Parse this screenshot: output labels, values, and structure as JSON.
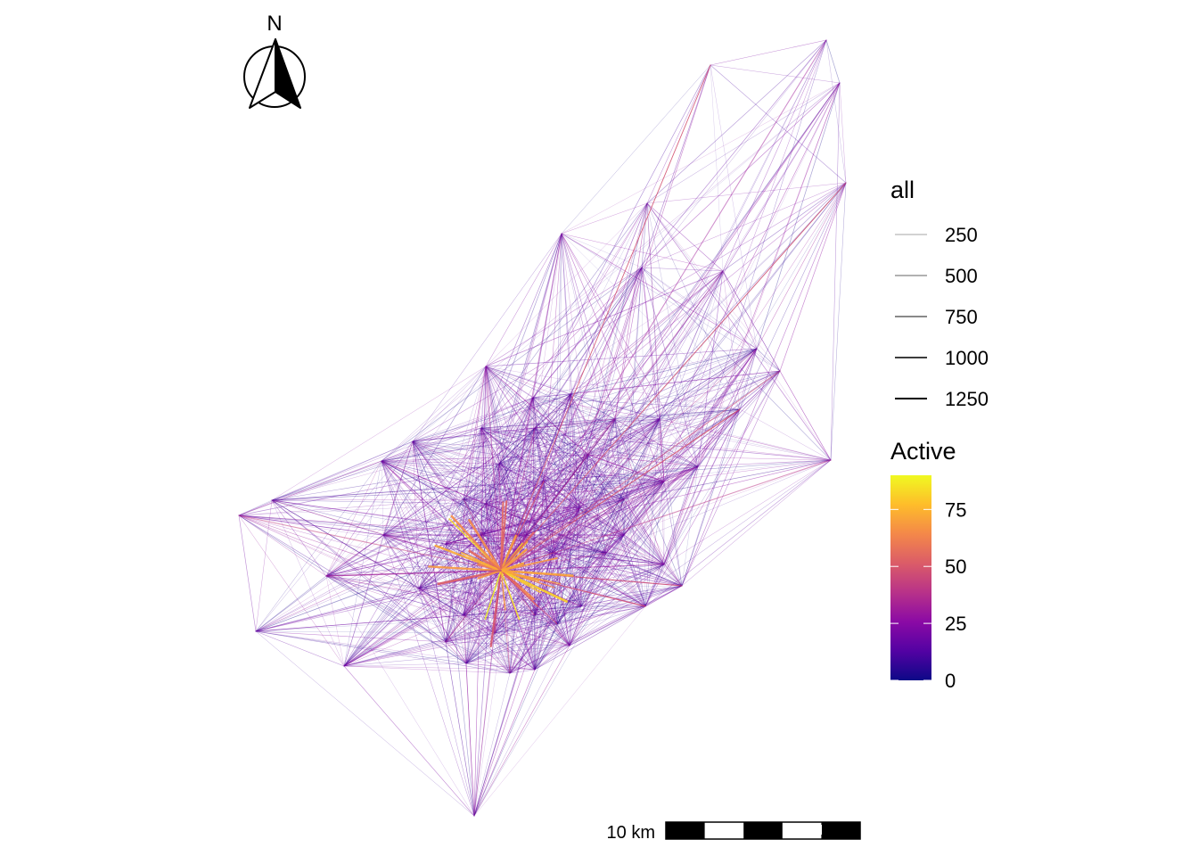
{
  "north_arrow": {
    "letter": "N"
  },
  "legend_width": {
    "title": "all",
    "entries": [
      {
        "label": "250",
        "value": 250
      },
      {
        "label": "500",
        "value": 500
      },
      {
        "label": "750",
        "value": 750
      },
      {
        "label": "1000",
        "value": 1000
      },
      {
        "label": "1250",
        "value": 1250
      }
    ]
  },
  "legend_color": {
    "title": "Active",
    "palette": "plasma",
    "range": [
      0,
      90
    ],
    "ticks": [
      {
        "label": "75",
        "value": 75
      },
      {
        "label": "50",
        "value": 50
      },
      {
        "label": "25",
        "value": 25
      },
      {
        "label": "0",
        "value": 0
      }
    ],
    "colors": [
      "#0d0887",
      "#5302a3",
      "#8b0aa5",
      "#b83289",
      "#db5c68",
      "#f48849",
      "#febd2a",
      "#f0f921"
    ]
  },
  "scale_bar": {
    "label": "10 km",
    "segments": 5
  }
}
